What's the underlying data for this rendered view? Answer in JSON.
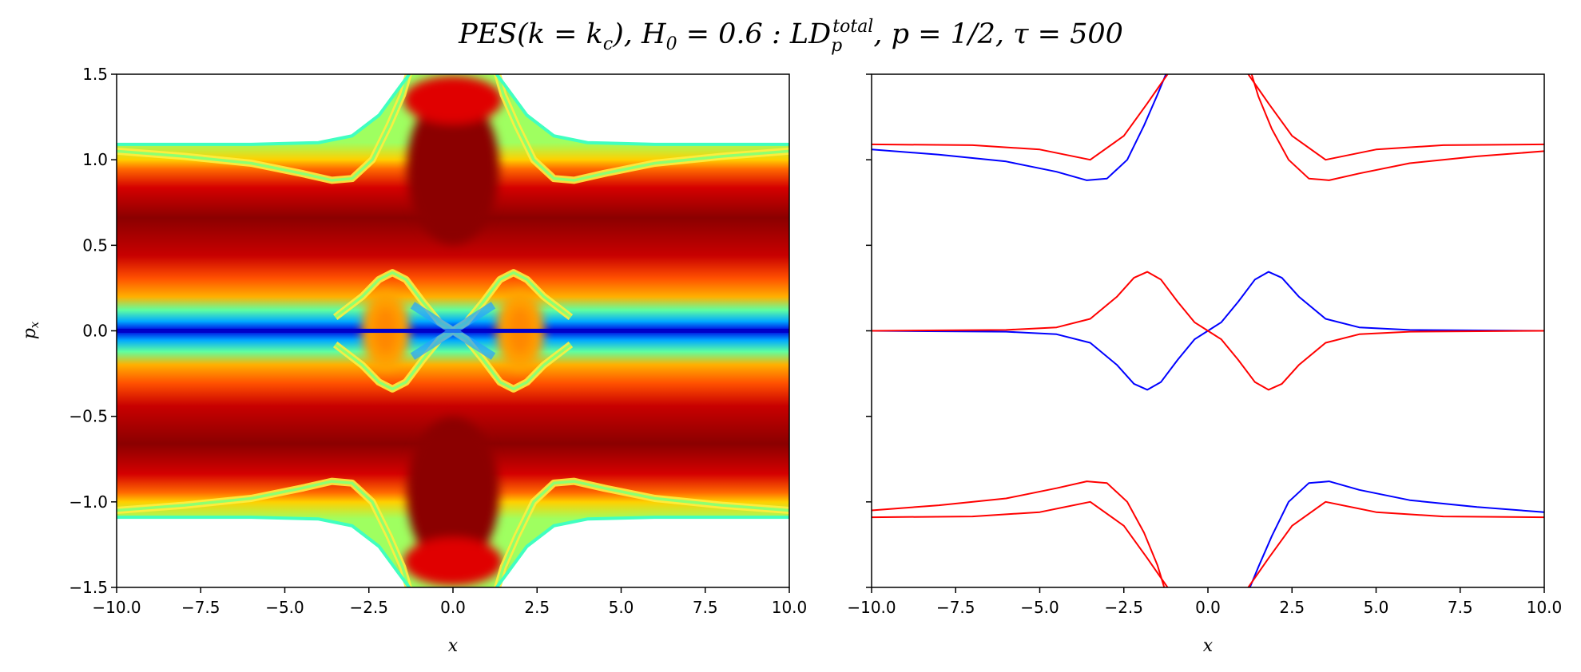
{
  "chart_data": {
    "title": {
      "part_pes": "PES(k = k",
      "part_c": "c",
      "part_h0": "), H",
      "part_0": "0",
      "part_eq": " = 0.6 : LD",
      "part_sub": "p",
      "part_sup": "total",
      "part_p": ", p = 1/2, τ = 500"
    },
    "xlabel": "x",
    "ylabel_main": "p",
    "ylabel_sub": "x",
    "xlim": [
      -10,
      10
    ],
    "ylim": [
      -1.5,
      1.5
    ],
    "x_ticks": [
      "−10.0",
      "−7.5",
      "−5.0",
      "−2.5",
      "0.0",
      "2.5",
      "5.0",
      "7.5",
      "10.0"
    ],
    "y_ticks": [
      "−1.5",
      "−1.0",
      "−0.5",
      "0.0",
      "0.5",
      "1.0",
      "1.5"
    ],
    "panels": [
      {
        "type": "heatmap",
        "colormap": "jet",
        "description_values": "Lagrangian descriptor field; low values (blue) along p_x=0 and near the separatrix curves, high values (dark red) in the bands |p_x|~0.75 and around x=0,|p_x|~0.95; white outside the energy surface boundary |p_x|≈1.09 for |x|>~4"
      },
      {
        "type": "line",
        "series": [
          {
            "color": "#0000ff",
            "curves": [
              [
                [
                  -10,
                  1.06
                ],
                [
                  -8,
                  1.03
                ],
                [
                  -6,
                  0.99
                ],
                [
                  -4.5,
                  0.93
                ],
                [
                  -3.6,
                  0.88
                ],
                [
                  -3.0,
                  0.89
                ],
                [
                  -2.4,
                  1.0
                ],
                [
                  -1.9,
                  1.2
                ],
                [
                  -1.5,
                  1.38
                ],
                [
                  -1.25,
                  1.5
                ]
              ],
              [
                [
                  10,
                  -1.06
                ],
                [
                  8,
                  -1.03
                ],
                [
                  6,
                  -0.99
                ],
                [
                  4.5,
                  -0.93
                ],
                [
                  3.6,
                  -0.88
                ],
                [
                  3.0,
                  -0.89
                ],
                [
                  2.4,
                  -1.0
                ],
                [
                  1.9,
                  -1.2
                ],
                [
                  1.5,
                  -1.38
                ],
                [
                  1.25,
                  -1.5
                ]
              ],
              [
                [
                  -10,
                  0.0
                ],
                [
                  -6,
                  -0.005
                ],
                [
                  -4.5,
                  -0.02
                ],
                [
                  -3.5,
                  -0.07
                ],
                [
                  -2.7,
                  -0.2
                ],
                [
                  -2.2,
                  -0.31
                ],
                [
                  -1.8,
                  -0.345
                ],
                [
                  -1.4,
                  -0.3
                ],
                [
                  -0.9,
                  -0.17
                ],
                [
                  -0.4,
                  -0.05
                ],
                [
                  0,
                  0
                ],
                [
                  0.4,
                  0.05
                ],
                [
                  0.9,
                  0.17
                ],
                [
                  1.4,
                  0.3
                ],
                [
                  1.8,
                  0.345
                ],
                [
                  2.2,
                  0.31
                ],
                [
                  2.7,
                  0.2
                ],
                [
                  3.5,
                  0.07
                ],
                [
                  4.5,
                  0.02
                ],
                [
                  6,
                  0.005
                ],
                [
                  10,
                  0.0
                ]
              ]
            ]
          },
          {
            "color": "#ff0000",
            "curves": [
              [
                [
                  -10,
                  1.09
                ],
                [
                  -7,
                  1.085
                ],
                [
                  -5,
                  1.06
                ],
                [
                  -3.5,
                  1.0
                ],
                [
                  -2.5,
                  1.14
                ],
                [
                  -1.8,
                  1.33
                ],
                [
                  -1.2,
                  1.5
                ]
              ],
              [
                [
                  10,
                  1.09
                ],
                [
                  7,
                  1.085
                ],
                [
                  5,
                  1.06
                ],
                [
                  3.5,
                  1.0
                ],
                [
                  2.5,
                  1.14
                ],
                [
                  1.8,
                  1.33
                ],
                [
                  1.2,
                  1.5
                ]
              ],
              [
                [
                  1.3,
                  1.5
                ],
                [
                  1.5,
                  1.37
                ],
                [
                  1.9,
                  1.18
                ],
                [
                  2.4,
                  1.0
                ],
                [
                  3.0,
                  0.89
                ],
                [
                  3.6,
                  0.88
                ],
                [
                  4.5,
                  0.92
                ],
                [
                  6,
                  0.98
                ],
                [
                  8,
                  1.02
                ],
                [
                  10,
                  1.05
                ]
              ],
              [
                [
                  -10,
                  -1.09
                ],
                [
                  -7,
                  -1.085
                ],
                [
                  -5,
                  -1.06
                ],
                [
                  -3.5,
                  -1.0
                ],
                [
                  -2.5,
                  -1.14
                ],
                [
                  -1.8,
                  -1.33
                ],
                [
                  -1.2,
                  -1.5
                ]
              ],
              [
                [
                  10,
                  -1.09
                ],
                [
                  7,
                  -1.085
                ],
                [
                  5,
                  -1.06
                ],
                [
                  3.5,
                  -1.0
                ],
                [
                  2.5,
                  -1.14
                ],
                [
                  1.8,
                  -1.33
                ],
                [
                  1.2,
                  -1.5
                ]
              ],
              [
                [
                  -1.3,
                  -1.5
                ],
                [
                  -1.5,
                  -1.37
                ],
                [
                  -1.9,
                  -1.18
                ],
                [
                  -2.4,
                  -1.0
                ],
                [
                  -3.0,
                  -0.89
                ],
                [
                  -3.6,
                  -0.88
                ],
                [
                  -4.5,
                  -0.92
                ],
                [
                  -6,
                  -0.98
                ],
                [
                  -8,
                  -1.02
                ],
                [
                  -10,
                  -1.05
                ]
              ],
              [
                [
                  -10,
                  0.0
                ],
                [
                  -6,
                  0.005
                ],
                [
                  -4.5,
                  0.02
                ],
                [
                  -3.5,
                  0.07
                ],
                [
                  -2.7,
                  0.2
                ],
                [
                  -2.2,
                  0.31
                ],
                [
                  -1.8,
                  0.345
                ],
                [
                  -1.4,
                  0.3
                ],
                [
                  -0.9,
                  0.17
                ],
                [
                  -0.4,
                  0.05
                ],
                [
                  0,
                  0
                ],
                [
                  0.4,
                  -0.05
                ],
                [
                  0.9,
                  -0.17
                ],
                [
                  1.4,
                  -0.3
                ],
                [
                  1.8,
                  -0.345
                ],
                [
                  2.2,
                  -0.31
                ],
                [
                  2.7,
                  -0.2
                ],
                [
                  3.5,
                  -0.07
                ],
                [
                  4.5,
                  -0.02
                ],
                [
                  6,
                  -0.005
                ],
                [
                  10,
                  0.0
                ]
              ]
            ]
          }
        ]
      }
    ]
  }
}
